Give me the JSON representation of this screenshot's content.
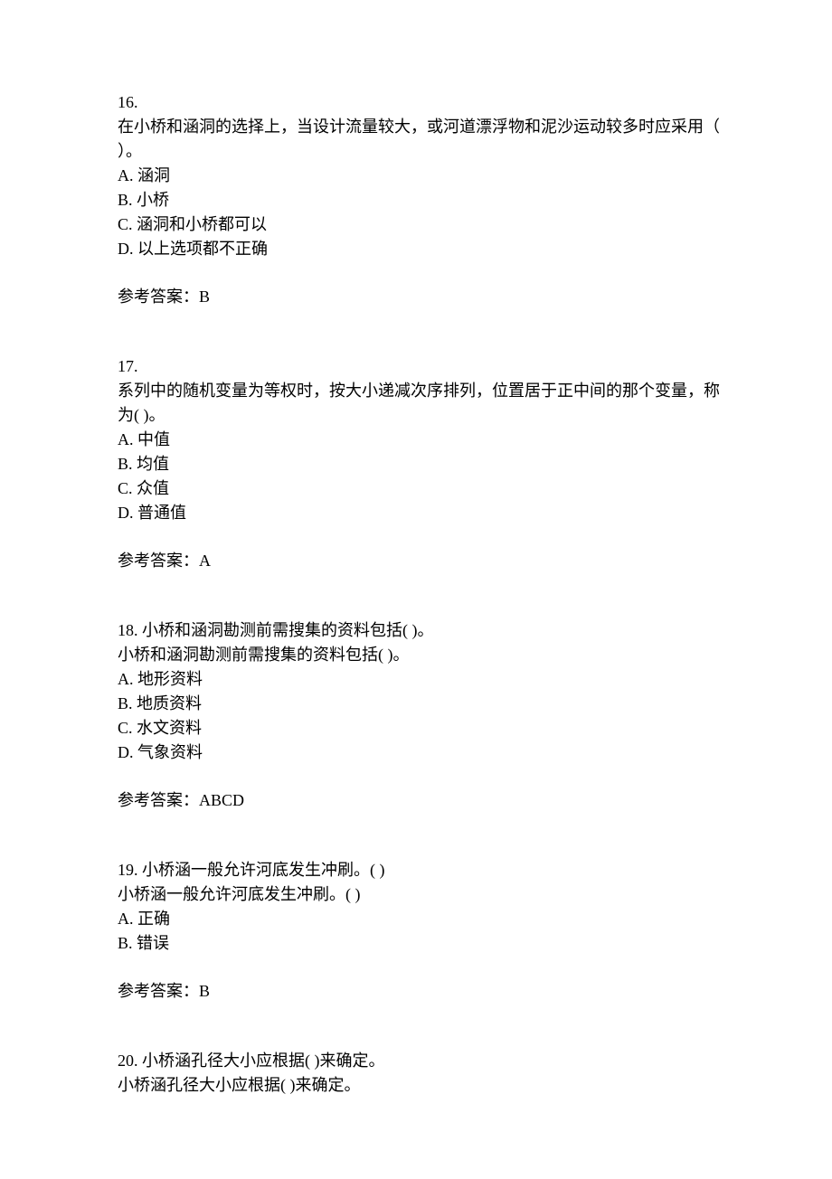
{
  "questions": [
    {
      "number": "16.",
      "text": "在小桥和涵洞的选择上，当设计流量较大，或河道漂浮物和泥沙运动较多时应采用（  ）。",
      "options": [
        "A. 涵洞",
        "B. 小桥",
        "C. 涵洞和小桥都可以",
        "D. 以上选项都不正确"
      ],
      "answer": "参考答案：B"
    },
    {
      "number": "17.",
      "text": "系列中的随机变量为等权时，按大小递减次序排列，位置居于正中间的那个变量，称为(  )。",
      "options": [
        "A. 中值",
        "B. 均值",
        "C. 众值",
        "D. 普通值"
      ],
      "answer": "参考答案：A"
    },
    {
      "number": "18.",
      "text_lines": [
        "18.  小桥和涵洞勘测前需搜集的资料包括(  )。",
        "小桥和涵洞勘测前需搜集的资料包括(  )。"
      ],
      "options": [
        "A. 地形资料",
        "B. 地质资料",
        "C. 水文资料",
        "D. 气象资料"
      ],
      "answer": "参考答案：ABCD"
    },
    {
      "number": "19.",
      "text_lines": [
        "19.  小桥涵一般允许河底发生冲刷。(  )",
        "小桥涵一般允许河底发生冲刷。(  )"
      ],
      "options": [
        "A. 正确",
        "B. 错误"
      ],
      "answer": "参考答案：B"
    },
    {
      "number": "20.",
      "text_lines": [
        "20.  小桥涵孔径大小应根据(  )来确定。",
        "小桥涵孔径大小应根据(  )来确定。"
      ],
      "options": [],
      "answer": ""
    }
  ]
}
